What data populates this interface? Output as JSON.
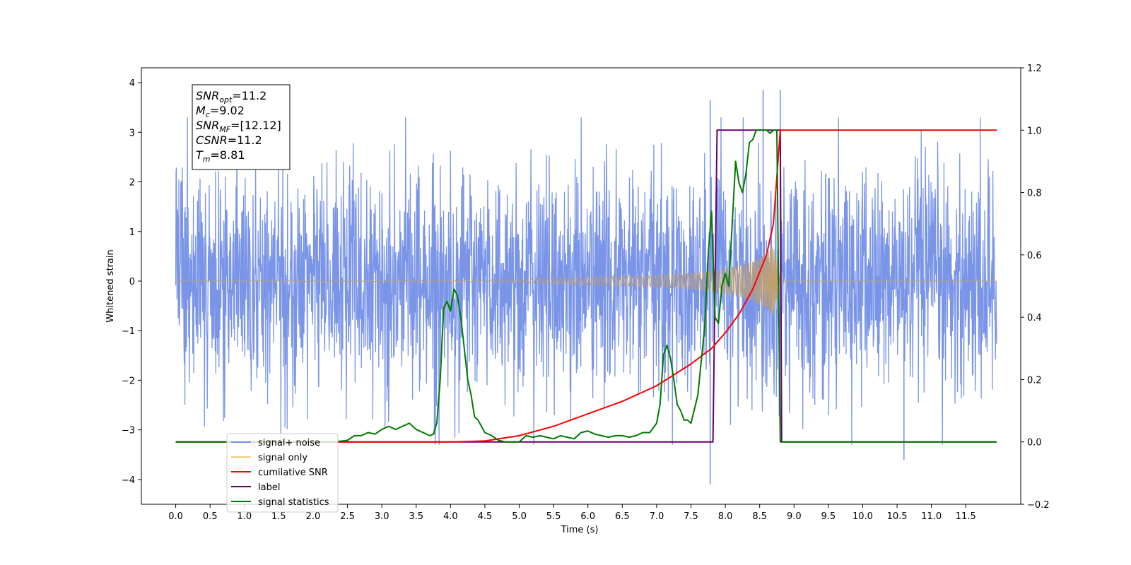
{
  "chart_data": {
    "type": "line",
    "xlabel": "Time (s)",
    "ylabel": "Whitened strain",
    "xlim": [
      -0.5,
      12.3
    ],
    "ylim_left": [
      -4.5,
      4.3
    ],
    "ylim_right": [
      -0.2,
      1.2
    ],
    "x_ticks": [
      0.0,
      0.5,
      1.0,
      1.5,
      2.0,
      2.5,
      3.0,
      3.5,
      4.0,
      4.5,
      5.0,
      5.5,
      6.0,
      6.5,
      7.0,
      7.5,
      8.0,
      8.5,
      9.0,
      9.5,
      10.0,
      10.5,
      11.0,
      11.5
    ],
    "x_tick_labels": [
      "0.0",
      "0.5",
      "1.0",
      "1.5",
      "2.0",
      "2.5",
      "3.0",
      "3.5",
      "4.0",
      "4.5",
      "5.0",
      "5.5",
      "6.0",
      "6.5",
      "7.0",
      "7.5",
      "8.0",
      "8.5",
      "9.0",
      "9.5",
      "10.0",
      "10.5",
      "11.0",
      "11.5"
    ],
    "y_ticks_left": [
      -4,
      -3,
      -2,
      -1,
      0,
      1,
      2,
      3,
      4
    ],
    "y_tick_labels_left": [
      "−4",
      "−3",
      "−2",
      "−1",
      "0",
      "1",
      "2",
      "3",
      "4"
    ],
    "y_ticks_right": [
      -0.2,
      0.0,
      0.2,
      0.4,
      0.6,
      0.8,
      1.0,
      1.2
    ],
    "y_tick_labels_right": [
      "−0.2",
      "0.0",
      "0.2",
      "0.4",
      "0.6",
      "0.8",
      "1.0",
      "1.2"
    ],
    "legend_placement": "lower-left",
    "legend": [
      {
        "label": "signal+ noise",
        "color": "#7a95e8"
      },
      {
        "label": "signal only",
        "color": "#ffc87a"
      },
      {
        "label": "cumilative SNR",
        "color": "#ff0000"
      },
      {
        "label": "label",
        "color": "#6a006a"
      },
      {
        "label": "signal statistics",
        "color": "#007a00"
      }
    ],
    "info_box": {
      "lines": [
        {
          "main": "SNR",
          "sub": "opt",
          "value": "=11.2"
        },
        {
          "main": "M",
          "sub": "c",
          "value": "=9.02"
        },
        {
          "main": "SNR",
          "sub": "MF",
          "value": "=[12.12]"
        },
        {
          "main": "CSNR",
          "sub": "",
          "value": "=11.2"
        },
        {
          "main": "T",
          "sub": "m",
          "value": "=8.81"
        }
      ]
    },
    "series": [
      {
        "name": "cumilative SNR",
        "axis": "right",
        "color": "#ff0000",
        "x": [
          0.0,
          3.0,
          4.0,
          4.5,
          5.0,
          5.5,
          6.0,
          6.5,
          7.0,
          7.5,
          7.8,
          8.0,
          8.2,
          8.4,
          8.6,
          8.7,
          8.8,
          11.95
        ],
        "y": [
          0.0,
          0.0,
          0.0,
          0.003,
          0.02,
          0.05,
          0.09,
          0.13,
          0.18,
          0.25,
          0.3,
          0.35,
          0.41,
          0.49,
          0.6,
          0.7,
          1.0,
          1.0
        ]
      },
      {
        "name": "label",
        "axis": "right",
        "color": "#6a006a",
        "x": [
          0.0,
          7.82,
          7.88,
          8.8,
          8.82,
          11.95
        ],
        "y": [
          0.0,
          0.0,
          1.0,
          1.0,
          0.0,
          0.0
        ]
      },
      {
        "name": "signal statistics",
        "axis": "right",
        "color": "#007a00",
        "x": [
          0.0,
          2.3,
          2.5,
          2.6,
          2.7,
          2.8,
          2.9,
          3.0,
          3.1,
          3.2,
          3.3,
          3.4,
          3.5,
          3.6,
          3.7,
          3.75,
          3.8,
          3.85,
          3.9,
          3.95,
          4.0,
          4.05,
          4.1,
          4.15,
          4.2,
          4.25,
          4.3,
          4.35,
          4.4,
          4.5,
          4.6,
          4.7,
          4.8,
          5.0,
          5.1,
          5.2,
          5.3,
          5.4,
          5.5,
          5.6,
          5.7,
          5.8,
          5.9,
          6.0,
          6.1,
          6.2,
          6.3,
          6.4,
          6.5,
          6.6,
          6.7,
          6.8,
          6.9,
          7.0,
          7.05,
          7.1,
          7.15,
          7.2,
          7.25,
          7.3,
          7.35,
          7.4,
          7.45,
          7.5,
          7.6,
          7.7,
          7.75,
          7.8,
          7.85,
          7.9,
          7.95,
          8.0,
          8.05,
          8.1,
          8.15,
          8.2,
          8.25,
          8.3,
          8.35,
          8.4,
          8.45,
          8.5,
          8.55,
          8.6,
          8.65,
          8.7,
          8.75,
          8.8,
          8.82,
          11.95
        ],
        "y": [
          0.0,
          0.0,
          0.005,
          0.02,
          0.02,
          0.03,
          0.025,
          0.04,
          0.05,
          0.04,
          0.05,
          0.06,
          0.04,
          0.03,
          0.02,
          0.025,
          0.06,
          0.2,
          0.43,
          0.45,
          0.42,
          0.49,
          0.47,
          0.4,
          0.3,
          0.2,
          0.15,
          0.08,
          0.07,
          0.03,
          0.02,
          0.005,
          0.0,
          0.0,
          0.02,
          0.015,
          0.02,
          0.015,
          0.01,
          0.02,
          0.015,
          0.01,
          0.03,
          0.035,
          0.025,
          0.02,
          0.015,
          0.02,
          0.02,
          0.015,
          0.02,
          0.03,
          0.03,
          0.06,
          0.12,
          0.28,
          0.31,
          0.27,
          0.2,
          0.12,
          0.1,
          0.07,
          0.07,
          0.06,
          0.15,
          0.37,
          0.6,
          0.74,
          0.4,
          0.38,
          0.5,
          0.54,
          0.5,
          0.7,
          0.9,
          0.83,
          0.8,
          0.86,
          0.96,
          0.97,
          1.0,
          1.0,
          1.0,
          1.0,
          0.99,
          1.0,
          1.0,
          0.0,
          0.0,
          0.0
        ]
      },
      {
        "name": "signal only",
        "axis": "left",
        "color": "#ffc87a",
        "envelope_x": [
          0.0,
          4.5,
          5.0,
          5.5,
          6.0,
          6.5,
          7.0,
          7.5,
          7.8,
          8.0,
          8.2,
          8.4,
          8.6,
          8.7,
          8.8,
          11.95
        ],
        "envelope_y": [
          0.0,
          0.02,
          0.04,
          0.06,
          0.08,
          0.1,
          0.12,
          0.16,
          0.2,
          0.25,
          0.32,
          0.4,
          0.55,
          0.7,
          0.0,
          0.0
        ]
      },
      {
        "name": "signal+ noise",
        "axis": "left",
        "color": "#7a95e8",
        "x_range": [
          0.0,
          11.95
        ],
        "typical_range": [
          -1.8,
          1.8
        ],
        "extremes": [
          {
            "x": 7.78,
            "y": -4.1
          },
          {
            "x": 7.78,
            "y": 3.65
          },
          {
            "x": 8.55,
            "y": 3.85
          },
          {
            "x": 8.8,
            "y": 3.85
          },
          {
            "x": 10.6,
            "y": -3.6
          }
        ]
      }
    ]
  }
}
